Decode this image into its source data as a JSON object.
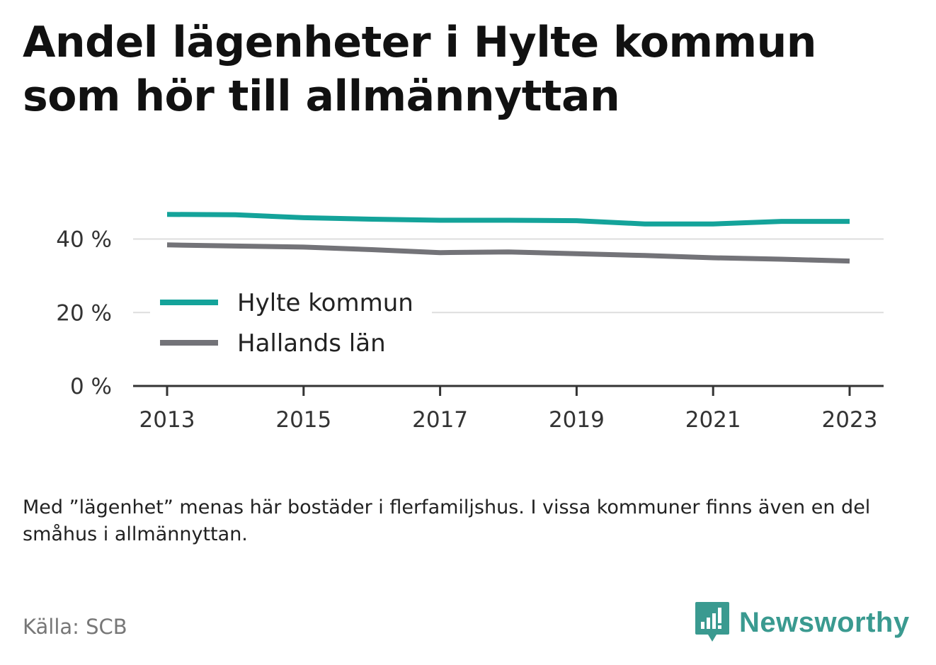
{
  "chart_data": {
    "type": "line",
    "title": "Andel lägenheter i Hylte kommun som hör till allmännyttan",
    "x": [
      2013,
      2014,
      2015,
      2016,
      2017,
      2018,
      2019,
      2020,
      2021,
      2022,
      2023
    ],
    "x_ticks": [
      "2013",
      "2015",
      "2017",
      "2019",
      "2021",
      "2023"
    ],
    "y_ticks": [
      "0 %",
      "20 %",
      "40 %"
    ],
    "ylim": [
      0,
      48
    ],
    "grid": true,
    "legend_position": "bottom-left",
    "series": [
      {
        "name": "Hylte kommun",
        "color": "#14a39a",
        "values": [
          46.7,
          46.6,
          45.8,
          45.4,
          45.1,
          45.1,
          45.0,
          44.1,
          44.1,
          44.8,
          44.8
        ]
      },
      {
        "name": "Hallands län",
        "color": "#737378",
        "values": [
          38.4,
          38.1,
          37.8,
          37.1,
          36.3,
          36.5,
          36.0,
          35.5,
          34.9,
          34.5,
          34.0
        ]
      }
    ]
  },
  "note": "Med ”lägenhet” menas här bostäder i flerfamiljshus. I vissa kommuner finns även en del småhus i allmännyttan.",
  "source": "Källa: SCB",
  "brand": {
    "name": "Newsworthy",
    "icon": "newsworthy-logo-icon",
    "color": "#3a9a90"
  }
}
